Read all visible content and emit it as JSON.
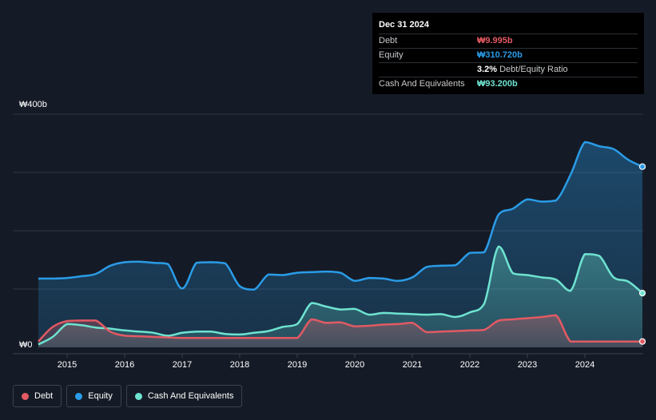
{
  "tooltip": {
    "date": "Dec 31 2024",
    "rows": [
      {
        "label": "Debt",
        "value": "₩9.995b",
        "color": "#e25a63"
      },
      {
        "label": "Equity",
        "value": "₩310.720b",
        "color": "#2a9ce8"
      },
      {
        "label": "",
        "value": "3.2%",
        "desc": "Debt/Equity Ratio",
        "color": "#ffffff"
      },
      {
        "label": "Cash And Equivalents",
        "value": "₩93.200b",
        "color": "#6ee3d0"
      }
    ]
  },
  "legend": [
    {
      "label": "Debt",
      "color": "#e25a63"
    },
    {
      "label": "Equity",
      "color": "#2a9ce8"
    },
    {
      "label": "Cash And Equivalents",
      "color": "#6ee3d0"
    }
  ],
  "chart_data": {
    "type": "area",
    "y_axis_labels": [
      "₩400b",
      "₩0"
    ],
    "ylim": [
      0,
      400
    ],
    "xlim": [
      2014.5,
      2025.0
    ],
    "x_tick_labels": [
      "2015",
      "2016",
      "2017",
      "2018",
      "2019",
      "2020",
      "2021",
      "2022",
      "2023",
      "2024"
    ],
    "x_tick_values": [
      2015,
      2016,
      2017,
      2018,
      2019,
      2020,
      2021,
      2022,
      2023,
      2024
    ],
    "grid": true,
    "legend_position": "bottom-left",
    "series": [
      {
        "name": "Equity",
        "color": "#2a9ce8",
        "x": [
          2014.5,
          2014.75,
          2015.0,
          2015.25,
          2015.5,
          2015.75,
          2016.0,
          2016.25,
          2016.5,
          2016.75,
          2017.0,
          2017.25,
          2017.5,
          2017.75,
          2018.0,
          2018.25,
          2018.5,
          2018.75,
          2019.0,
          2019.25,
          2019.5,
          2019.75,
          2020.0,
          2020.25,
          2020.5,
          2020.75,
          2021.0,
          2021.25,
          2021.5,
          2021.75,
          2022.0,
          2022.25,
          2022.5,
          2022.75,
          2023.0,
          2023.25,
          2023.5,
          2023.75,
          2024.0,
          2024.25,
          2024.5,
          2024.75,
          2025.0
        ],
        "values": [
          118,
          118,
          119,
          122,
          126,
          140,
          146,
          147,
          145,
          143,
          101,
          145,
          146,
          144,
          105,
          99,
          125,
          124,
          128,
          129,
          130,
          128,
          114,
          119,
          118,
          114,
          120,
          138,
          140,
          141,
          162,
          163,
          228,
          238,
          254,
          250,
          252,
          296,
          352,
          345,
          340,
          322,
          310
        ]
      },
      {
        "name": "Cash And Equivalents",
        "color": "#6ee3d0",
        "x": [
          2014.5,
          2014.75,
          2015.0,
          2015.25,
          2015.5,
          2015.75,
          2016.0,
          2016.25,
          2016.5,
          2016.75,
          2017.0,
          2017.25,
          2017.5,
          2017.75,
          2018.0,
          2018.25,
          2018.5,
          2018.75,
          2019.0,
          2019.25,
          2019.5,
          2019.75,
          2020.0,
          2020.25,
          2020.5,
          2020.75,
          2021.0,
          2021.25,
          2021.5,
          2021.75,
          2022.0,
          2022.25,
          2022.5,
          2022.75,
          2023.0,
          2023.25,
          2023.5,
          2023.75,
          2024.0,
          2024.25,
          2024.5,
          2024.75,
          2025.0
        ],
        "values": [
          5,
          18,
          40,
          38,
          34,
          32,
          29,
          27,
          25,
          20,
          25,
          27,
          27,
          23,
          22,
          25,
          28,
          35,
          40,
          76,
          70,
          65,
          66,
          56,
          59,
          58,
          57,
          56,
          57,
          52,
          60,
          75,
          173,
          127,
          124,
          120,
          116,
          97,
          160,
          157,
          120,
          113,
          93
        ]
      },
      {
        "name": "Debt",
        "color": "#e25a63",
        "x": [
          2014.5,
          2014.75,
          2015.0,
          2015.25,
          2015.5,
          2015.75,
          2016.0,
          2016.25,
          2016.5,
          2016.75,
          2017.0,
          2017.25,
          2017.5,
          2017.75,
          2018.0,
          2018.25,
          2018.5,
          2018.75,
          2019.0,
          2019.25,
          2019.5,
          2019.75,
          2020.0,
          2020.25,
          2020.5,
          2020.75,
          2021.0,
          2021.25,
          2021.5,
          2021.75,
          2022.0,
          2022.25,
          2022.5,
          2022.75,
          2023.0,
          2023.25,
          2023.5,
          2023.75,
          2024.0,
          2024.25,
          2024.5,
          2024.75,
          2025.0
        ],
        "values": [
          10,
          35,
          45,
          46,
          46,
          27,
          20,
          19,
          18,
          17,
          16,
          16,
          16,
          16,
          16,
          16,
          16,
          16,
          16,
          48,
          42,
          43,
          36,
          37,
          39,
          40,
          42,
          26,
          27,
          28,
          29,
          30,
          46,
          48,
          50,
          52,
          55,
          10,
          10,
          10,
          10,
          10,
          10
        ]
      }
    ]
  }
}
